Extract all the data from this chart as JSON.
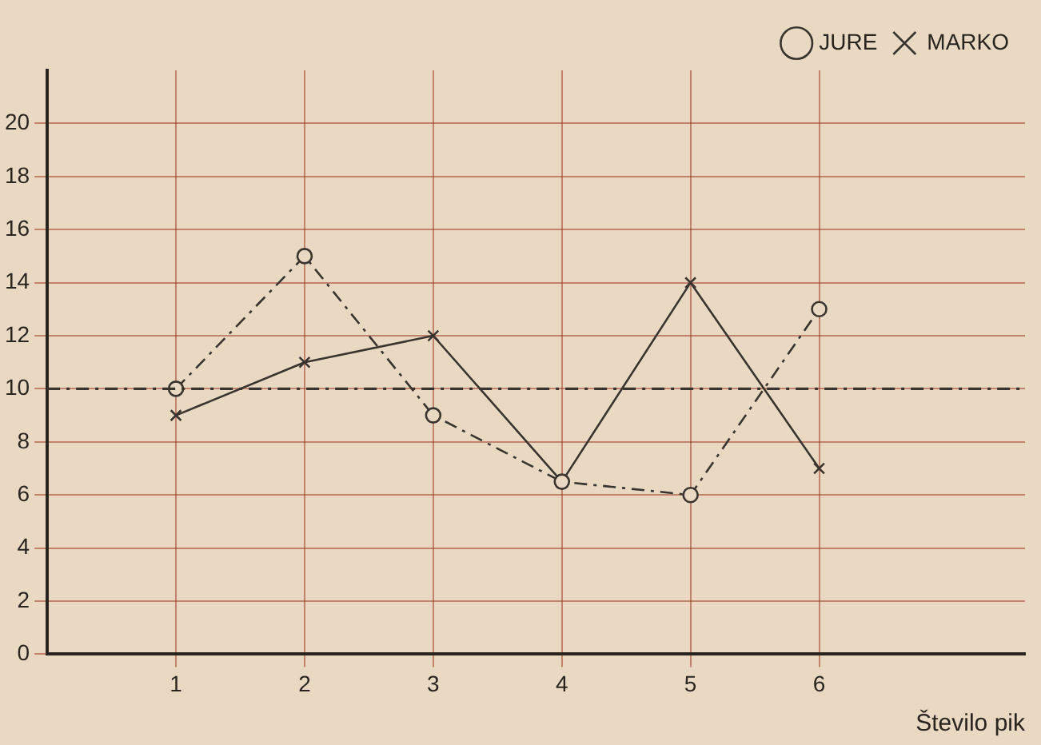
{
  "chart_data": {
    "type": "line",
    "xlabel": "Število pik",
    "x": [
      1,
      2,
      3,
      4,
      5,
      6
    ],
    "series": [
      {
        "name": "JURE",
        "color": "#3a3430",
        "values": [
          10,
          15,
          9,
          6.5,
          6,
          13
        ],
        "marker": "circle",
        "line_style": "dashed"
      },
      {
        "name": "MARKO",
        "color": "#3a3430",
        "values": [
          9,
          11,
          12,
          6.5,
          14,
          7
        ],
        "marker": "cross",
        "line_style": "solid"
      }
    ],
    "xlim": [
      0,
      7.6
    ],
    "xticks": [
      1,
      2,
      3,
      4,
      5,
      6
    ],
    "ylim": [
      0,
      22
    ],
    "yticks": [
      0,
      2,
      4,
      6,
      8,
      10,
      12,
      14,
      16,
      18,
      20
    ],
    "ref_lines": [
      {
        "axis": "y",
        "value": 10,
        "line_style": "dashed",
        "color": "#3a3430"
      }
    ],
    "grid": true,
    "legend": "top right"
  }
}
